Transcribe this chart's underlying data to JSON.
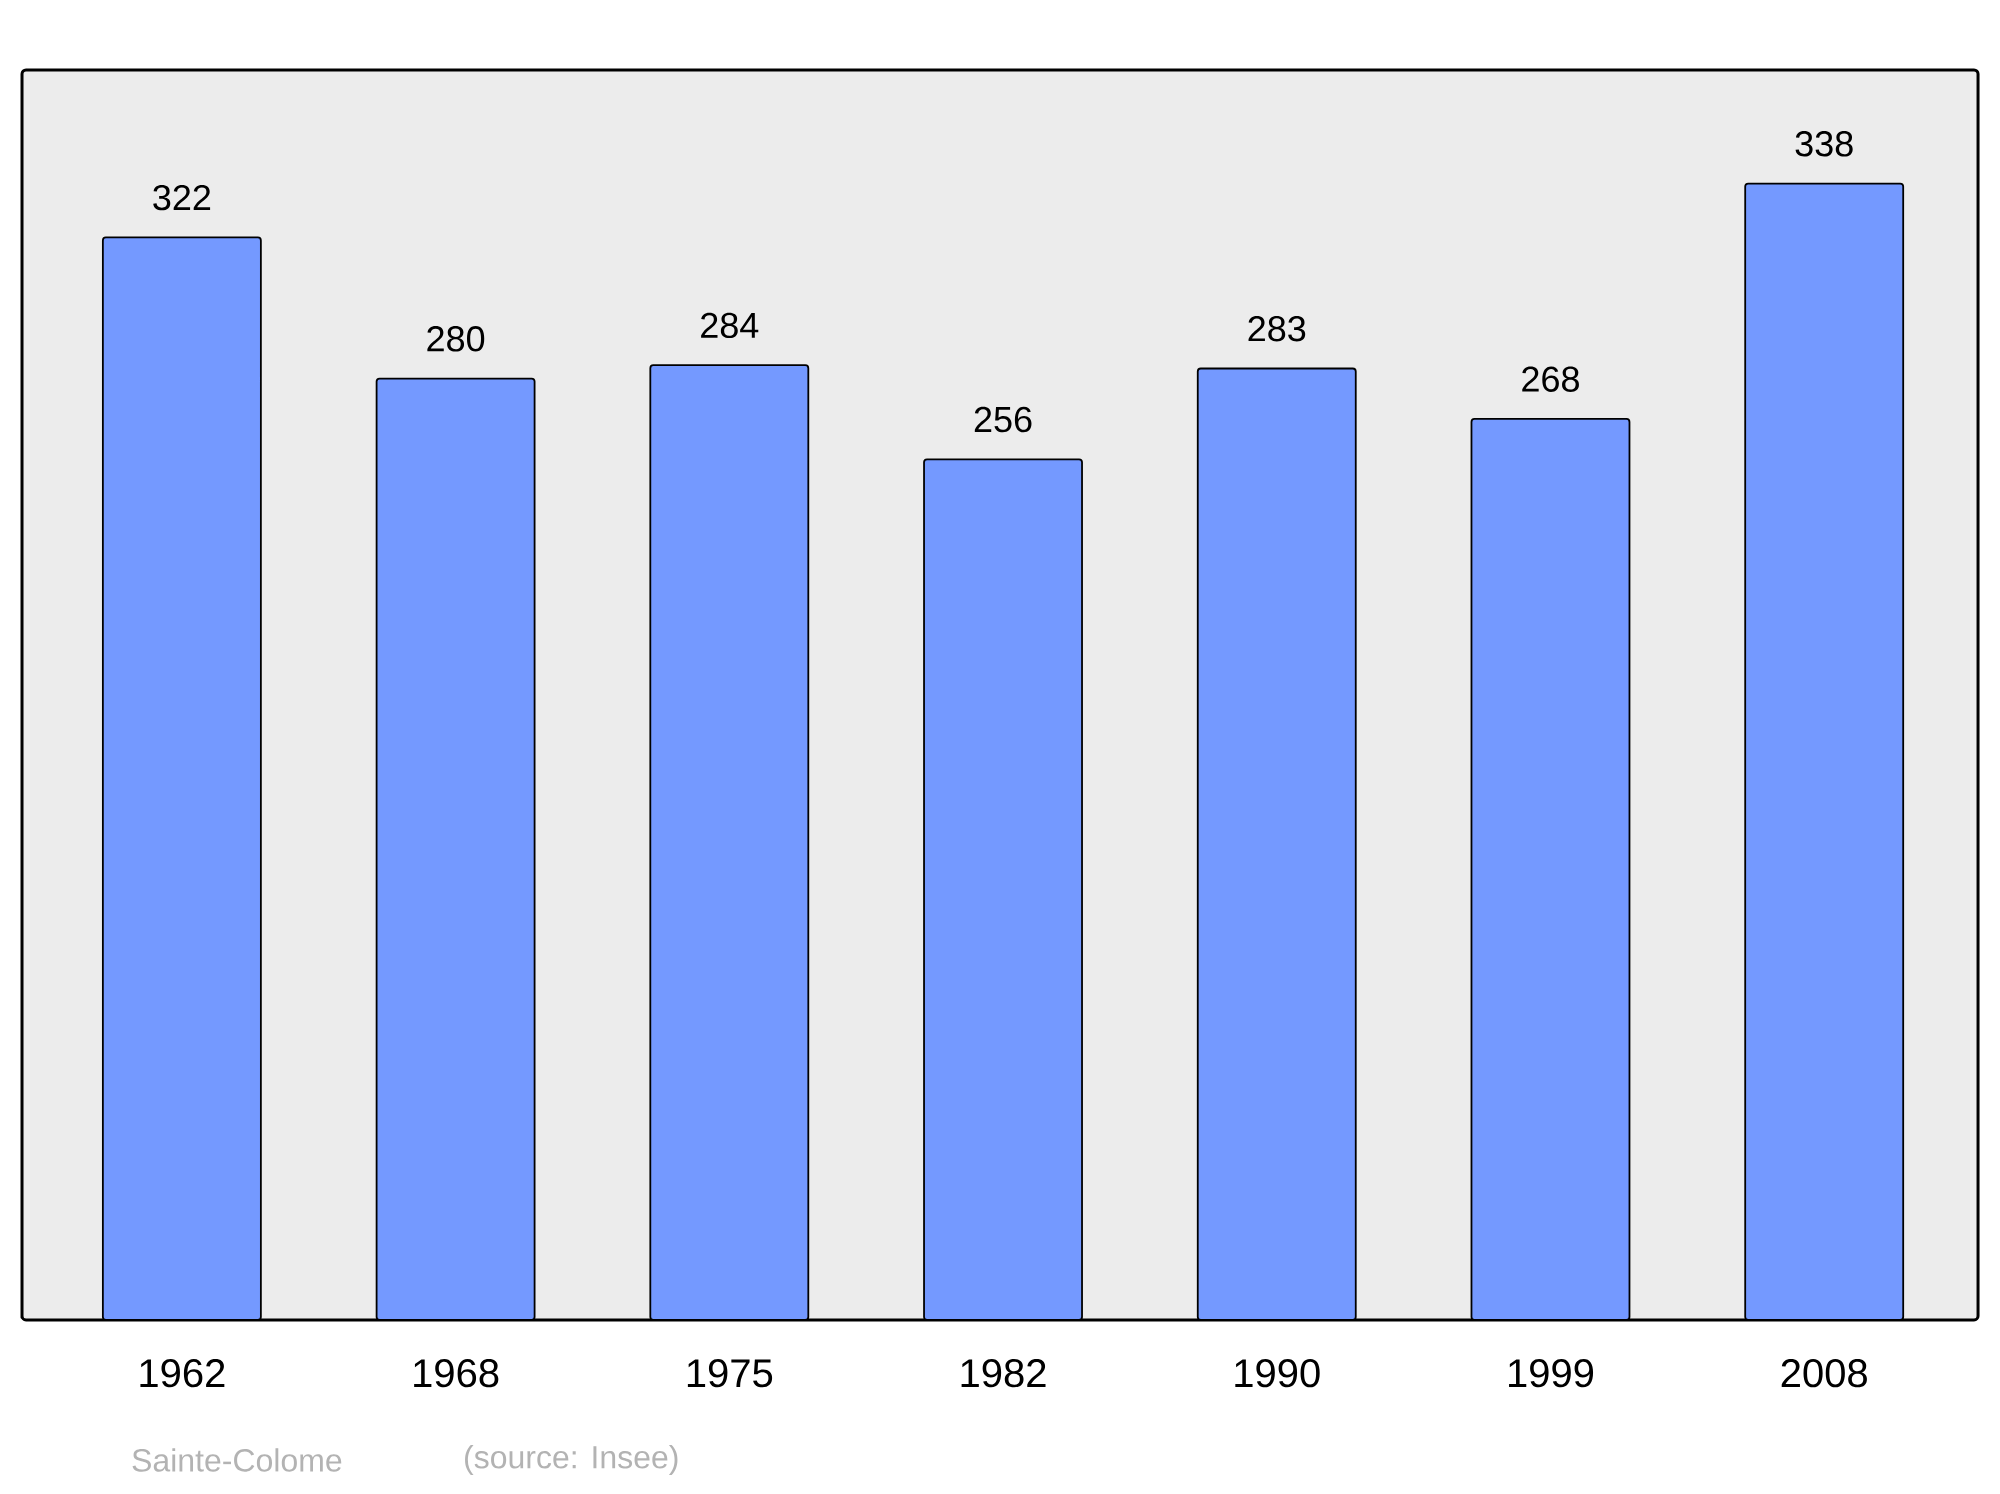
{
  "chart_data": {
    "type": "bar",
    "categories": [
      "1962",
      "1968",
      "1975",
      "1982",
      "1990",
      "1999",
      "2008"
    ],
    "values": [
      322,
      280,
      284,
      256,
      283,
      268,
      338
    ],
    "color": "#7499ff",
    "data_labels": true,
    "annotations": [
      "Sainte-Colome",
      "(source: Insee)"
    ]
  }
}
